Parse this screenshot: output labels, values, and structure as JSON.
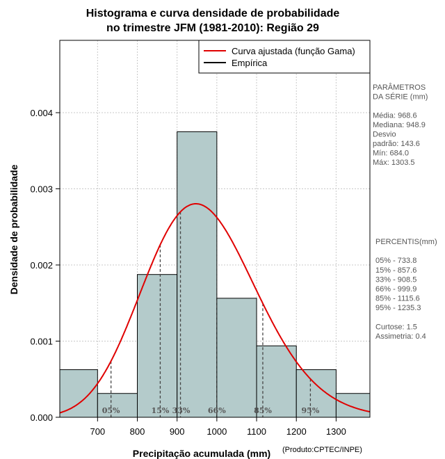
{
  "chart_data": {
    "type": "bar",
    "title_lines": [
      "Histograma e curva densidade de probabilidade",
      "no trimestre JFM (1981-2010): Região 29"
    ],
    "xlabel": "Precipitação acumulada (mm)",
    "ylabel": "Densidade de probabilidade",
    "credit": "(Produto:CPTEC/INPE)",
    "xlim": [
      605,
      1385
    ],
    "ylim": [
      0,
      0.00495
    ],
    "x_ticks": [
      700,
      800,
      900,
      1000,
      1100,
      1200,
      1300
    ],
    "x_tick_labels": [
      "700",
      "800",
      "900",
      "1000",
      "1100",
      "1200",
      "1300"
    ],
    "y_ticks": [
      0,
      0.001,
      0.002,
      0.003,
      0.004
    ],
    "y_tick_labels": [
      "0.000",
      "0.001",
      "0.002",
      "0.003",
      "0.004"
    ],
    "grid": true,
    "histogram": {
      "bins": [
        {
          "x0": 600,
          "x1": 700,
          "density": 0.000625
        },
        {
          "x0": 700,
          "x1": 800,
          "density": 0.000313
        },
        {
          "x0": 800,
          "x1": 900,
          "density": 0.001875
        },
        {
          "x0": 900,
          "x1": 1000,
          "density": 0.00375
        },
        {
          "x0": 1000,
          "x1": 1100,
          "density": 0.001563
        },
        {
          "x0": 1100,
          "x1": 1200,
          "density": 0.000938
        },
        {
          "x0": 1200,
          "x1": 1300,
          "density": 0.000625
        },
        {
          "x0": 1300,
          "x1": 1400,
          "density": 0.000313
        }
      ],
      "fill_color": "#b4cbcb"
    },
    "gamma_fit": {
      "mean": 968.6,
      "sd": 143.6,
      "color": "#e00000"
    },
    "legend": {
      "position": "top-right",
      "entries": [
        {
          "label": "Curva ajustada (função Gama)",
          "color": "#e00000"
        },
        {
          "label": "Empírica",
          "color": "#000000"
        }
      ]
    },
    "percentile_markers": [
      {
        "label": "05%",
        "value": 733.8
      },
      {
        "label": "15%",
        "value": 857.6
      },
      {
        "label": "33%",
        "value": 908.5
      },
      {
        "label": "66%",
        "value": 999.9
      },
      {
        "label": "85%",
        "value": 1115.6
      },
      {
        "label": "95%",
        "value": 1235.3
      }
    ]
  },
  "side_panel": {
    "params_lines": [
      "PARÂMETROS",
      " DA SÉRIE (mm)",
      "",
      "Média:  968.6",
      "Mediana:  948.9",
      "Desvio",
      "padrão:  143.6",
      "Mín:  684.0",
      "Máx:  1303.5"
    ],
    "percentis_lines": [
      " PERCENTIS(mm)",
      "",
      "05% -  733.8",
      "15% -  857.6",
      "33% -  908.5",
      "66% -  999.9",
      "85% -  1115.6",
      "95% -  1235.3",
      "",
      "Curtose:  1.5",
      "Assimetria:  0.4"
    ]
  }
}
